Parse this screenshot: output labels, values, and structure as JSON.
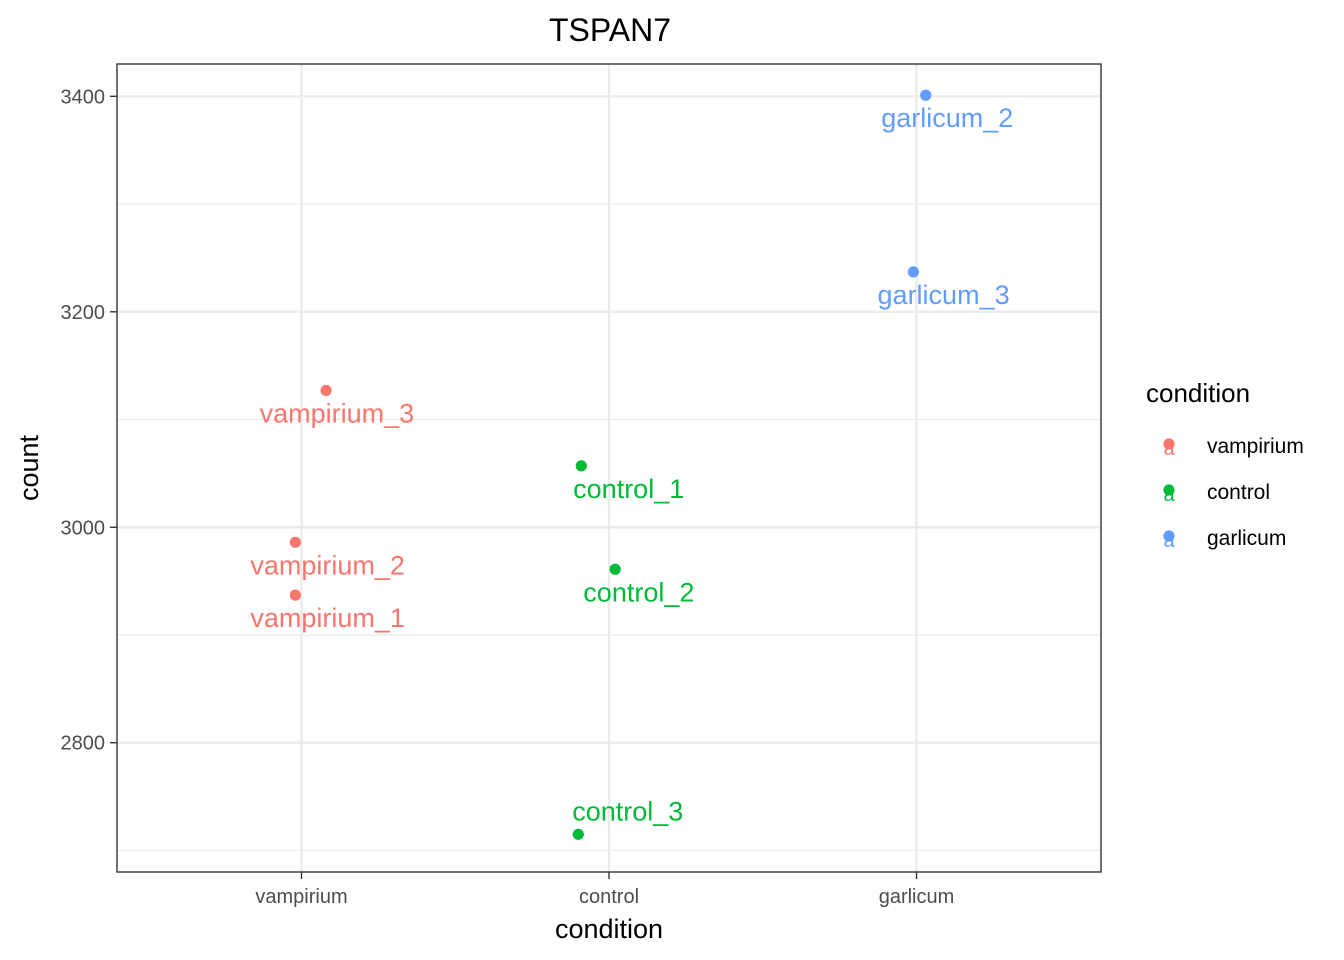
{
  "chart_data": {
    "type": "scatter",
    "title": "TSPAN7",
    "xlabel": "condition",
    "ylabel": "count",
    "categories": [
      "vampirium",
      "control",
      "garlicum"
    ],
    "ylim": [
      2680,
      3430
    ],
    "y_ticks": [
      2800,
      3000,
      3200,
      3400
    ],
    "y_minor_ticks": [
      2700,
      2900,
      3100,
      3300
    ],
    "grid": true,
    "legend": {
      "title": "condition",
      "position": "right",
      "entries": [
        "vampirium",
        "control",
        "garlicum"
      ],
      "key_glyph": "a"
    },
    "colors": {
      "vampirium": "#F8766D",
      "control": "#00BA38",
      "garlicum": "#619CFF"
    },
    "points": [
      {
        "label": "vampirium_1",
        "condition": "vampirium",
        "jitter": -0.02,
        "y": 2937
      },
      {
        "label": "vampirium_2",
        "condition": "vampirium",
        "jitter": -0.02,
        "y": 2986
      },
      {
        "label": "vampirium_3",
        "condition": "vampirium",
        "jitter": 0.08,
        "y": 3127
      },
      {
        "label": "control_1",
        "condition": "control",
        "jitter": -0.09,
        "y": 3057
      },
      {
        "label": "control_2",
        "condition": "control",
        "jitter": 0.02,
        "y": 2961
      },
      {
        "label": "control_3",
        "condition": "control",
        "jitter": -0.1,
        "y": 2715
      },
      {
        "label": "garlicum_2",
        "condition": "garlicum",
        "jitter": 0.03,
        "y": 3401
      },
      {
        "label": "garlicum_3",
        "condition": "garlicum",
        "jitter": -0.01,
        "y": 3237
      }
    ]
  }
}
